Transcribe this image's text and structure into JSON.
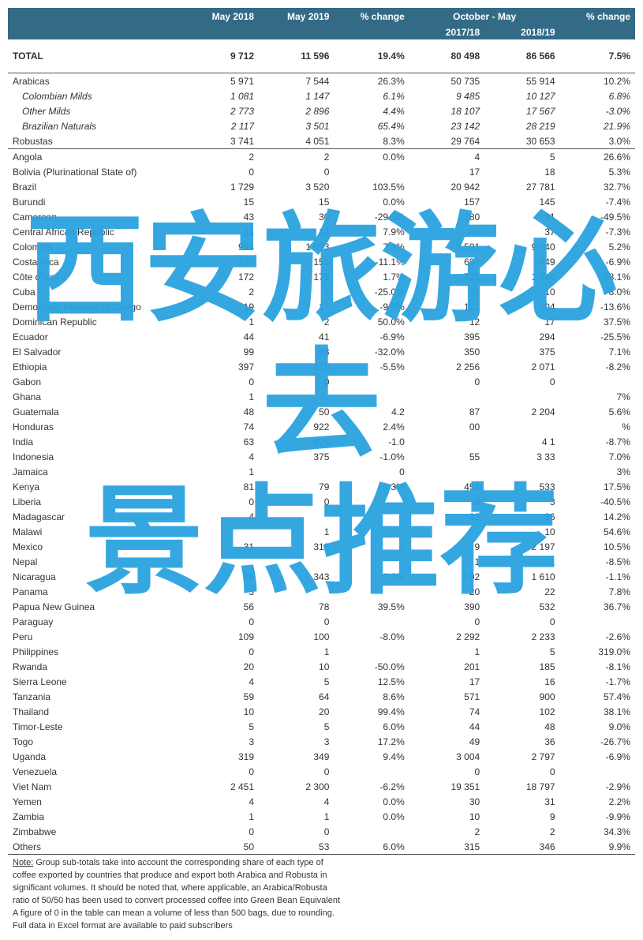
{
  "header": {
    "col1": "",
    "col2": "May 2018",
    "col3": "May 2019",
    "col4": "% change",
    "col5_span": "October - May",
    "col7": "% change",
    "sub5": "2017/18",
    "sub6": "2018/19"
  },
  "col_widths": [
    "28%",
    "12%",
    "12%",
    "12%",
    "12%",
    "12%",
    "12%"
  ],
  "colors": {
    "header_bg": "#336b87",
    "header_fg": "#ffffff",
    "text": "#333333",
    "border": "#555555",
    "overlay": "#2aa3e0"
  },
  "overlay_text": "西安旅游必去\n景点推荐",
  "total": {
    "label": "TOTAL",
    "c": [
      "9 712",
      "11 596",
      "19.4%",
      "80 498",
      "86 566",
      "7.5%"
    ]
  },
  "group_rows": [
    {
      "label": "Arabicas",
      "c": [
        "5 971",
        "7 544",
        "26.3%",
        "50 735",
        "55 914",
        "10.2%"
      ],
      "cls": "sep-top"
    },
    {
      "label": "Colombian Milds",
      "c": [
        "1 081",
        "1 147",
        "6.1%",
        "9 485",
        "10 127",
        "6.8%"
      ],
      "cls": "italic indent1"
    },
    {
      "label": "Other Milds",
      "c": [
        "2 773",
        "2 896",
        "4.4%",
        "18 107",
        "17 567",
        "-3.0%"
      ],
      "cls": "italic indent1"
    },
    {
      "label": "Brazilian Naturals",
      "c": [
        "2 117",
        "3 501",
        "65.4%",
        "23 142",
        "28 219",
        "21.9%"
      ],
      "cls": "italic indent1"
    },
    {
      "label": "Robustas",
      "c": [
        "3 741",
        "4 051",
        "8.3%",
        "29 764",
        "30 653",
        "3.0%"
      ],
      "cls": "sep-bot"
    }
  ],
  "country_rows": [
    {
      "label": "Angola",
      "c": [
        "2",
        "2",
        "0.0%",
        "4",
        "5",
        "26.6%"
      ]
    },
    {
      "label": "Bolivia (Plurinational State of)",
      "c": [
        "0",
        "0",
        "",
        "17",
        "18",
        "5.3%"
      ]
    },
    {
      "label": "Brazil",
      "c": [
        "1 729",
        "3 520",
        "103.5%",
        "20 942",
        "27 781",
        "32.7%"
      ]
    },
    {
      "label": "Burundi",
      "c": [
        "15",
        "15",
        "0.0%",
        "157",
        "145",
        "-7.4%"
      ]
    },
    {
      "label": "Cameroon",
      "c": [
        "43",
        "30",
        "-29.5%",
        "180",
        "91",
        "-49.5%"
      ]
    },
    {
      "label": "Central African Republic",
      "c": [
        "11",
        "12",
        "7.9%",
        "40",
        "37",
        "-7.3%"
      ]
    },
    {
      "label": "Colombia",
      "c": [
        "954",
        "1 023",
        "7.3%",
        "8 591",
        "9 040",
        "5.2%"
      ]
    },
    {
      "label": "Costa Rica",
      "c": [
        "170",
        "151",
        "-11.1%",
        "697",
        "649",
        "-6.9%"
      ]
    },
    {
      "label": "Côte d'Ivoire",
      "c": [
        "172",
        "175",
        "1.7%",
        "721",
        "1 140",
        "58.1%"
      ]
    },
    {
      "label": "Cuba",
      "c": [
        "2",
        "2",
        "-25.0%",
        "11",
        "10",
        "-8.0%"
      ]
    },
    {
      "label": "Democratic Republic of Congo",
      "c": [
        "19",
        "17",
        "-9.8%",
        "121",
        "104",
        "-13.6%"
      ]
    },
    {
      "label": "Dominican Republic",
      "c": [
        "1",
        "2",
        "50.0%",
        "12",
        "17",
        "37.5%"
      ]
    },
    {
      "label": "Ecuador",
      "c": [
        "44",
        "41",
        "-6.9%",
        "395",
        "294",
        "-25.5%"
      ]
    },
    {
      "label": "El Salvador",
      "c": [
        "99",
        "68",
        "-32.0%",
        "350",
        "375",
        "7.1%"
      ]
    },
    {
      "label": "Ethiopia",
      "c": [
        "397",
        "375",
        "-5.5%",
        "2 256",
        "2 071",
        "-8.2%"
      ]
    },
    {
      "label": "Gabon",
      "c": [
        "0",
        "0",
        "",
        "0",
        "0",
        ""
      ]
    },
    {
      "label": "Ghana",
      "c": [
        "1",
        "",
        "",
        "",
        "",
        "7%"
      ]
    },
    {
      "label": "Guatemala",
      "c": [
        "48",
        "50",
        "4.2",
        "87",
        "2 204",
        "5.6%"
      ]
    },
    {
      "label": "Honduras",
      "c": [
        "74",
        "922",
        "2.4%",
        "00",
        "",
        "%"
      ]
    },
    {
      "label": "India",
      "c": [
        "63",
        "625",
        "-1.0",
        "",
        "4 1",
        "-8.7%"
      ]
    },
    {
      "label": "Indonesia",
      "c": [
        "4",
        "375",
        "-1.0%",
        "55",
        "3 33",
        "7.0%"
      ]
    },
    {
      "label": "Jamaica",
      "c": [
        "1",
        "",
        "0",
        "",
        "",
        "3%"
      ]
    },
    {
      "label": "Kenya",
      "c": [
        "81",
        "79",
        "-3.3%",
        "454",
        "533",
        "17.5%"
      ]
    },
    {
      "label": "Liberia",
      "c": [
        "0",
        "0",
        "",
        "5",
        "3",
        "-40.5%"
      ]
    },
    {
      "label": "Madagascar",
      "c": [
        "4",
        "",
        "",
        "32",
        "36",
        "14.2%"
      ]
    },
    {
      "label": "Malawi",
      "c": [
        "",
        "1",
        "",
        "",
        "10",
        "54.6%"
      ]
    },
    {
      "label": "Mexico",
      "c": [
        "31",
        "318",
        "7",
        "9",
        "2 197",
        "10.5%"
      ]
    },
    {
      "label": "Nepal",
      "c": [
        "",
        "",
        "",
        "1",
        "1",
        "-8.5%"
      ]
    },
    {
      "label": "Nicaragua",
      "c": [
        "28",
        "343",
        "0.2%",
        "1 02",
        "1 610",
        "-1.1%"
      ]
    },
    {
      "label": "Panama",
      "c": [
        "3",
        "",
        "",
        "20",
        "22",
        "7.8%"
      ]
    },
    {
      "label": "Papua New Guinea",
      "c": [
        "56",
        "78",
        "39.5%",
        "390",
        "532",
        "36.7%"
      ]
    },
    {
      "label": "Paraguay",
      "c": [
        "0",
        "0",
        "",
        "0",
        "0",
        ""
      ]
    },
    {
      "label": "Peru",
      "c": [
        "109",
        "100",
        "-8.0%",
        "2 292",
        "2 233",
        "-2.6%"
      ]
    },
    {
      "label": "Philippines",
      "c": [
        "0",
        "1",
        "",
        "1",
        "5",
        "319.0%"
      ]
    },
    {
      "label": "Rwanda",
      "c": [
        "20",
        "10",
        "-50.0%",
        "201",
        "185",
        "-8.1%"
      ]
    },
    {
      "label": "Sierra Leone",
      "c": [
        "4",
        "5",
        "12.5%",
        "17",
        "16",
        "-1.7%"
      ]
    },
    {
      "label": "Tanzania",
      "c": [
        "59",
        "64",
        "8.6%",
        "571",
        "900",
        "57.4%"
      ]
    },
    {
      "label": "Thailand",
      "c": [
        "10",
        "20",
        "99.4%",
        "74",
        "102",
        "38.1%"
      ]
    },
    {
      "label": "Timor-Leste",
      "c": [
        "5",
        "5",
        "6.0%",
        "44",
        "48",
        "9.0%"
      ]
    },
    {
      "label": "Togo",
      "c": [
        "3",
        "3",
        "17.2%",
        "49",
        "36",
        "-26.7%"
      ]
    },
    {
      "label": "Uganda",
      "c": [
        "319",
        "349",
        "9.4%",
        "3 004",
        "2 797",
        "-6.9%"
      ]
    },
    {
      "label": "Venezuela",
      "c": [
        "0",
        "0",
        "",
        "0",
        "0",
        ""
      ]
    },
    {
      "label": "Viet Nam",
      "c": [
        "2 451",
        "2 300",
        "-6.2%",
        "19 351",
        "18 797",
        "-2.9%"
      ]
    },
    {
      "label": "Yemen",
      "c": [
        "4",
        "4",
        "0.0%",
        "30",
        "31",
        "2.2%"
      ]
    },
    {
      "label": "Zambia",
      "c": [
        "1",
        "1",
        "0.0%",
        "10",
        "9",
        "-9.9%"
      ]
    },
    {
      "label": "Zimbabwe",
      "c": [
        "0",
        "0",
        "",
        "2",
        "2",
        "34.3%"
      ]
    },
    {
      "label": "Others",
      "c": [
        "50",
        "53",
        "6.0%",
        "315",
        "346",
        "9.9%"
      ],
      "cls": "sep-bot"
    }
  ],
  "footnotes": [
    "Note: Group sub-totals take into account the corresponding share of each type of",
    "coffee exported by countries that produce and export both Arabica and Robusta in",
    "significant volumes.  It should be noted that, where applicable, an Arabica/Robusta",
    "ratio of 50/50 has been used to convert processed coffee into Green Bean Equivalent",
    "A figure of 0 in the table can mean a volume of less than 500 bags, due to rounding.",
    "Full data in Excel format are available to paid subscribers"
  ]
}
